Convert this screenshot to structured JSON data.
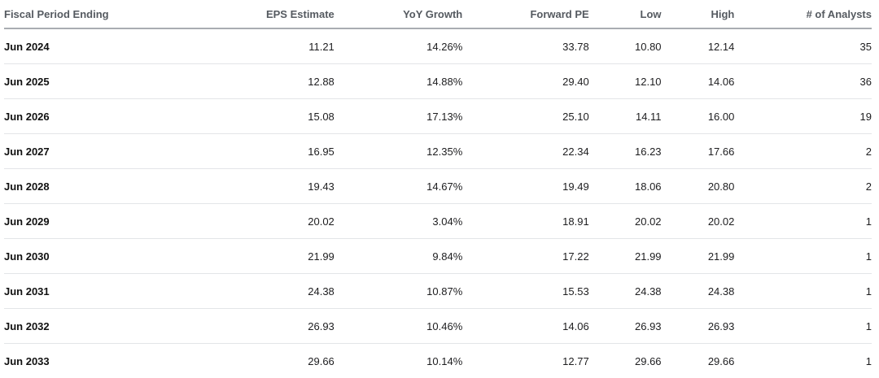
{
  "table": {
    "headers": {
      "period": "Fiscal Period Ending",
      "eps": "EPS Estimate",
      "yoy": "YoY Growth",
      "pe": "Forward PE",
      "low": "Low",
      "high": "High",
      "analysts": "# of Analysts"
    },
    "rows": [
      {
        "period": "Jun 2024",
        "eps": "11.21",
        "yoy": "14.26%",
        "pe": "33.78",
        "low": "10.80",
        "high": "12.14",
        "analysts": "35"
      },
      {
        "period": "Jun 2025",
        "eps": "12.88",
        "yoy": "14.88%",
        "pe": "29.40",
        "low": "12.10",
        "high": "14.06",
        "analysts": "36"
      },
      {
        "period": "Jun 2026",
        "eps": "15.08",
        "yoy": "17.13%",
        "pe": "25.10",
        "low": "14.11",
        "high": "16.00",
        "analysts": "19"
      },
      {
        "period": "Jun 2027",
        "eps": "16.95",
        "yoy": "12.35%",
        "pe": "22.34",
        "low": "16.23",
        "high": "17.66",
        "analysts": "2"
      },
      {
        "period": "Jun 2028",
        "eps": "19.43",
        "yoy": "14.67%",
        "pe": "19.49",
        "low": "18.06",
        "high": "20.80",
        "analysts": "2"
      },
      {
        "period": "Jun 2029",
        "eps": "20.02",
        "yoy": "3.04%",
        "pe": "18.91",
        "low": "20.02",
        "high": "20.02",
        "analysts": "1"
      },
      {
        "period": "Jun 2030",
        "eps": "21.99",
        "yoy": "9.84%",
        "pe": "17.22",
        "low": "21.99",
        "high": "21.99",
        "analysts": "1"
      },
      {
        "period": "Jun 2031",
        "eps": "24.38",
        "yoy": "10.87%",
        "pe": "15.53",
        "low": "24.38",
        "high": "24.38",
        "analysts": "1"
      },
      {
        "period": "Jun 2032",
        "eps": "26.93",
        "yoy": "10.46%",
        "pe": "14.06",
        "low": "26.93",
        "high": "26.93",
        "analysts": "1"
      },
      {
        "period": "Jun 2033",
        "eps": "29.66",
        "yoy": "10.14%",
        "pe": "12.77",
        "low": "29.66",
        "high": "29.66",
        "analysts": "1"
      }
    ]
  },
  "colors": {
    "header_text": "#555a60",
    "header_rule": "#a9adb2",
    "row_rule": "#e3e5e8",
    "body_text": "#1d1d1f"
  }
}
